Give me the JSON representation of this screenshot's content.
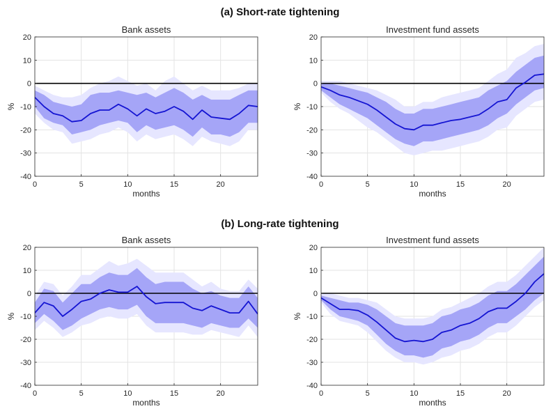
{
  "panel_titles": {
    "a": "(a) Short-rate tightening",
    "b": "(b) Long-rate tightening"
  },
  "colors": {
    "band_outer": "#e6e6ff",
    "band_inner": "#a5a5f7",
    "line": "#1414d2",
    "zero_line": "#000000"
  },
  "chart_data": [
    {
      "type": "line",
      "panel": "a",
      "title": "Bank assets",
      "xlabel": "months",
      "ylabel": "%",
      "xlim": [
        0,
        24
      ],
      "ylim": [
        -40,
        20
      ],
      "xticks": [
        0,
        5,
        10,
        15,
        20
      ],
      "yticks": [
        20,
        10,
        0,
        -10,
        -20,
        -30,
        -40
      ],
      "grid": true,
      "zero_line": true,
      "x": [
        0,
        1,
        2,
        3,
        4,
        5,
        6,
        7,
        8,
        9,
        10,
        11,
        12,
        13,
        14,
        15,
        16,
        17,
        18,
        19,
        20,
        21,
        22,
        23,
        24
      ],
      "median": [
        -6,
        -10,
        -13,
        -14,
        -16.5,
        -16,
        -13,
        -11.5,
        -11.5,
        -9,
        -11,
        -14,
        -11,
        -13,
        -12,
        -10,
        -12,
        -15.5,
        -11.5,
        -14.5,
        -15,
        -15.5,
        -13,
        -9.5,
        -10
      ],
      "inner_upper": [
        -3,
        -5,
        -8,
        -9,
        -10,
        -9,
        -5,
        -4,
        -4,
        -3,
        -4,
        -5,
        -4,
        -6,
        -4,
        -2,
        -4,
        -7,
        -5,
        -7,
        -7,
        -7,
        -5,
        -3,
        -3
      ],
      "inner_lower": [
        -10,
        -15,
        -17,
        -18,
        -22,
        -21,
        -20,
        -18,
        -17,
        -16,
        -17,
        -21,
        -18,
        -20,
        -19,
        -18,
        -20,
        -23,
        -19,
        -22,
        -22,
        -23,
        -21,
        -17,
        -17
      ],
      "outer_upper": [
        -1,
        -3,
        -5,
        -6,
        -6,
        -5,
        -2,
        0,
        1,
        3,
        1,
        -1,
        0,
        -3,
        1,
        3,
        0,
        -3,
        -1,
        -3,
        -3,
        -3,
        -2,
        0,
        0
      ],
      "outer_lower": [
        -13,
        -17,
        -20,
        -21,
        -26,
        -25,
        -24,
        -22,
        -21,
        -19,
        -21,
        -25,
        -22,
        -24,
        -23,
        -22,
        -24,
        -27,
        -23,
        -25,
        -26,
        -27,
        -25,
        -20,
        -20
      ]
    },
    {
      "type": "line",
      "panel": "a",
      "title": "Investment fund assets",
      "xlabel": "months",
      "ylabel": "%",
      "xlim": [
        0,
        24
      ],
      "ylim": [
        -40,
        20
      ],
      "xticks": [
        0,
        5,
        10,
        15,
        20
      ],
      "yticks": [
        20,
        10,
        0,
        -10,
        -20,
        -30,
        -40
      ],
      "grid": true,
      "zero_line": true,
      "x": [
        0,
        1,
        2,
        3,
        4,
        5,
        6,
        7,
        8,
        9,
        10,
        11,
        12,
        13,
        14,
        15,
        16,
        17,
        18,
        19,
        20,
        21,
        22,
        23,
        24
      ],
      "median": [
        -1.5,
        -3,
        -5,
        -6,
        -7.5,
        -9,
        -11.5,
        -14.5,
        -17.5,
        -19.5,
        -20,
        -18,
        -18,
        -17,
        -16,
        -15.5,
        -14.5,
        -13.5,
        -11,
        -8,
        -7,
        -2,
        0.5,
        3.5,
        4
      ],
      "inner_upper": [
        0,
        0,
        -1,
        -2,
        -3,
        -4,
        -6,
        -8,
        -11,
        -13,
        -13,
        -11,
        -11,
        -10,
        -9,
        -8,
        -7,
        -6,
        -3,
        -1,
        1,
        5,
        8,
        11,
        12
      ],
      "inner_lower": [
        -3,
        -6,
        -9,
        -11,
        -13,
        -15,
        -18,
        -21,
        -24,
        -26,
        -27,
        -25,
        -25,
        -24,
        -23,
        -22,
        -21,
        -20,
        -18,
        -15,
        -13,
        -9,
        -6,
        -3,
        -2
      ],
      "outer_upper": [
        1,
        1,
        1,
        0,
        -1,
        -2,
        -3,
        -5,
        -7,
        -10,
        -10,
        -8,
        -8,
        -6,
        -5,
        -4,
        -3,
        -2,
        1,
        4,
        6,
        11,
        13,
        16,
        17
      ],
      "outer_lower": [
        -4,
        -8,
        -11,
        -13,
        -16,
        -19,
        -21,
        -24,
        -27,
        -30,
        -31,
        -30,
        -29,
        -29,
        -28,
        -27,
        -26,
        -25,
        -23,
        -20,
        -19,
        -14,
        -11,
        -8,
        -7
      ]
    },
    {
      "type": "line",
      "panel": "b",
      "title": "Bank assets",
      "xlabel": "months",
      "ylabel": "%",
      "xlim": [
        0,
        24
      ],
      "ylim": [
        -40,
        20
      ],
      "xticks": [
        0,
        5,
        10,
        15,
        20
      ],
      "yticks": [
        20,
        10,
        0,
        -10,
        -20,
        -30,
        -40
      ],
      "grid": true,
      "zero_line": true,
      "x": [
        0,
        1,
        2,
        3,
        4,
        5,
        6,
        7,
        8,
        9,
        10,
        11,
        12,
        13,
        14,
        15,
        16,
        17,
        18,
        19,
        20,
        21,
        22,
        23,
        24
      ],
      "median": [
        -8.5,
        -4,
        -5.5,
        -10,
        -7,
        -3.5,
        -2.5,
        0,
        1.5,
        0.5,
        0.5,
        3,
        -1.5,
        -4.5,
        -4,
        -4,
        -4,
        -6.5,
        -7.5,
        -5.5,
        -7,
        -8.5,
        -8.5,
        -3.5,
        -9
      ],
      "inner_upper": [
        -4,
        2,
        1,
        -4,
        0,
        4,
        4,
        7,
        9,
        8,
        8,
        11,
        7,
        4,
        5,
        5,
        5,
        2,
        0,
        1,
        -1,
        -2,
        -2,
        3,
        -2
      ],
      "inner_lower": [
        -13,
        -9,
        -12,
        -16,
        -14,
        -11,
        -9,
        -7,
        -6,
        -7,
        -7,
        -5,
        -10,
        -13,
        -13,
        -13,
        -13,
        -14,
        -15,
        -13,
        -14,
        -15,
        -15,
        -11,
        -15
      ],
      "outer_upper": [
        -1,
        5,
        4,
        -1,
        3,
        8,
        8,
        11,
        14,
        12,
        13,
        15,
        12,
        9,
        9,
        9,
        9,
        6,
        3,
        5,
        2,
        1,
        1,
        6,
        2
      ],
      "outer_lower": [
        -16,
        -12,
        -15,
        -19,
        -17,
        -14,
        -13,
        -11,
        -10,
        -11,
        -11,
        -9,
        -14,
        -17,
        -17,
        -17,
        -17,
        -18,
        -18,
        -16,
        -17,
        -18,
        -19,
        -14,
        -19
      ]
    },
    {
      "type": "line",
      "panel": "b",
      "title": "Investment fund assets",
      "xlabel": "months",
      "ylabel": "%",
      "xlim": [
        0,
        24
      ],
      "ylim": [
        -40,
        20
      ],
      "xticks": [
        0,
        5,
        10,
        15,
        20
      ],
      "yticks": [
        20,
        10,
        0,
        -10,
        -20,
        -30,
        -40
      ],
      "grid": true,
      "zero_line": true,
      "x": [
        0,
        1,
        2,
        3,
        4,
        5,
        6,
        7,
        8,
        9,
        10,
        11,
        12,
        13,
        14,
        15,
        16,
        17,
        18,
        19,
        20,
        21,
        22,
        23,
        24
      ],
      "median": [
        -2,
        -4.5,
        -7,
        -7,
        -7.5,
        -9.5,
        -12.5,
        -16,
        -19.5,
        -21,
        -20.5,
        -21,
        -20,
        -17,
        -16,
        -14,
        -13,
        -11,
        -8,
        -6.5,
        -6.5,
        -3.5,
        0,
        5,
        8.5
      ],
      "inner_upper": [
        -1,
        -2,
        -3,
        -4,
        -4,
        -5,
        -7,
        -10,
        -13,
        -14,
        -14,
        -14,
        -13,
        -10,
        -9,
        -7,
        -6,
        -4,
        -1,
        1,
        1,
        4,
        8,
        12,
        16
      ],
      "inner_lower": [
        -3,
        -7,
        -10,
        -11,
        -12,
        -14,
        -18,
        -22,
        -25,
        -27,
        -27,
        -28,
        -27,
        -24,
        -23,
        -21,
        -20,
        -18,
        -15,
        -13,
        -13,
        -10,
        -7,
        -3,
        0
      ],
      "outer_upper": [
        0,
        0,
        -1,
        -2,
        -2,
        -3,
        -4,
        -7,
        -10,
        -11,
        -11,
        -11,
        -10,
        -7,
        -6,
        -4,
        -2,
        0,
        3,
        5,
        5,
        8,
        12,
        16,
        20
      ],
      "outer_lower": [
        -4,
        -9,
        -12,
        -13,
        -14,
        -17,
        -21,
        -25,
        -28,
        -30,
        -30,
        -31,
        -30,
        -28,
        -27,
        -25,
        -24,
        -22,
        -19,
        -17,
        -17,
        -14,
        -10,
        -6,
        -3
      ]
    }
  ]
}
